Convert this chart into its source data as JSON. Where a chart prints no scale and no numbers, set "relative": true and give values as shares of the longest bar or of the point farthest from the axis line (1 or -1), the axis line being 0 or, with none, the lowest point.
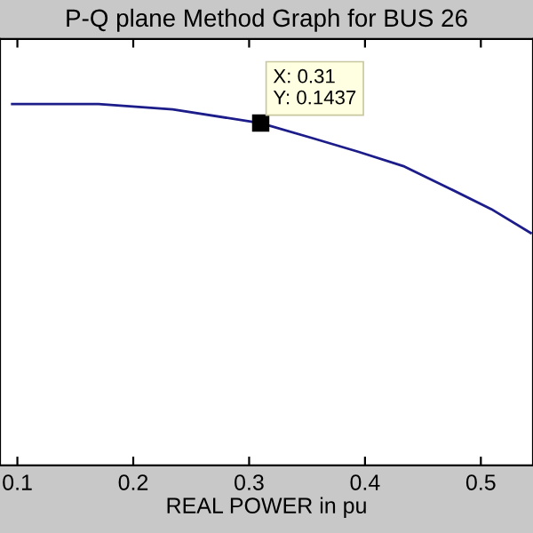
{
  "chart_data": {
    "type": "line",
    "title": "P-Q plane Method Graph for BUS 26",
    "xlabel": "REAL POWER in pu",
    "relative": true,
    "grid": false,
    "tick_labels": "x",
    "x": [
      0.0955,
      0.17,
      0.234,
      0.31,
      0.354,
      0.394,
      0.434,
      0.473,
      0.509,
      0.543
    ],
    "series": [
      {
        "color": "#1c1c8a",
        "values": [
          1.0,
          1.0,
          0.985,
          0.947,
          0.906,
          0.868,
          0.827,
          0.766,
          0.709,
          0.643
        ]
      }
    ],
    "xlim": [
      0.085,
      0.545
    ],
    "xticks": [
      0.1,
      0.2,
      0.3,
      0.4,
      0.5
    ],
    "annotations": [
      {
        "text": "X: 0.31\nY: 0.1437",
        "x": 0.31,
        "y": 0.947
      }
    ]
  }
}
